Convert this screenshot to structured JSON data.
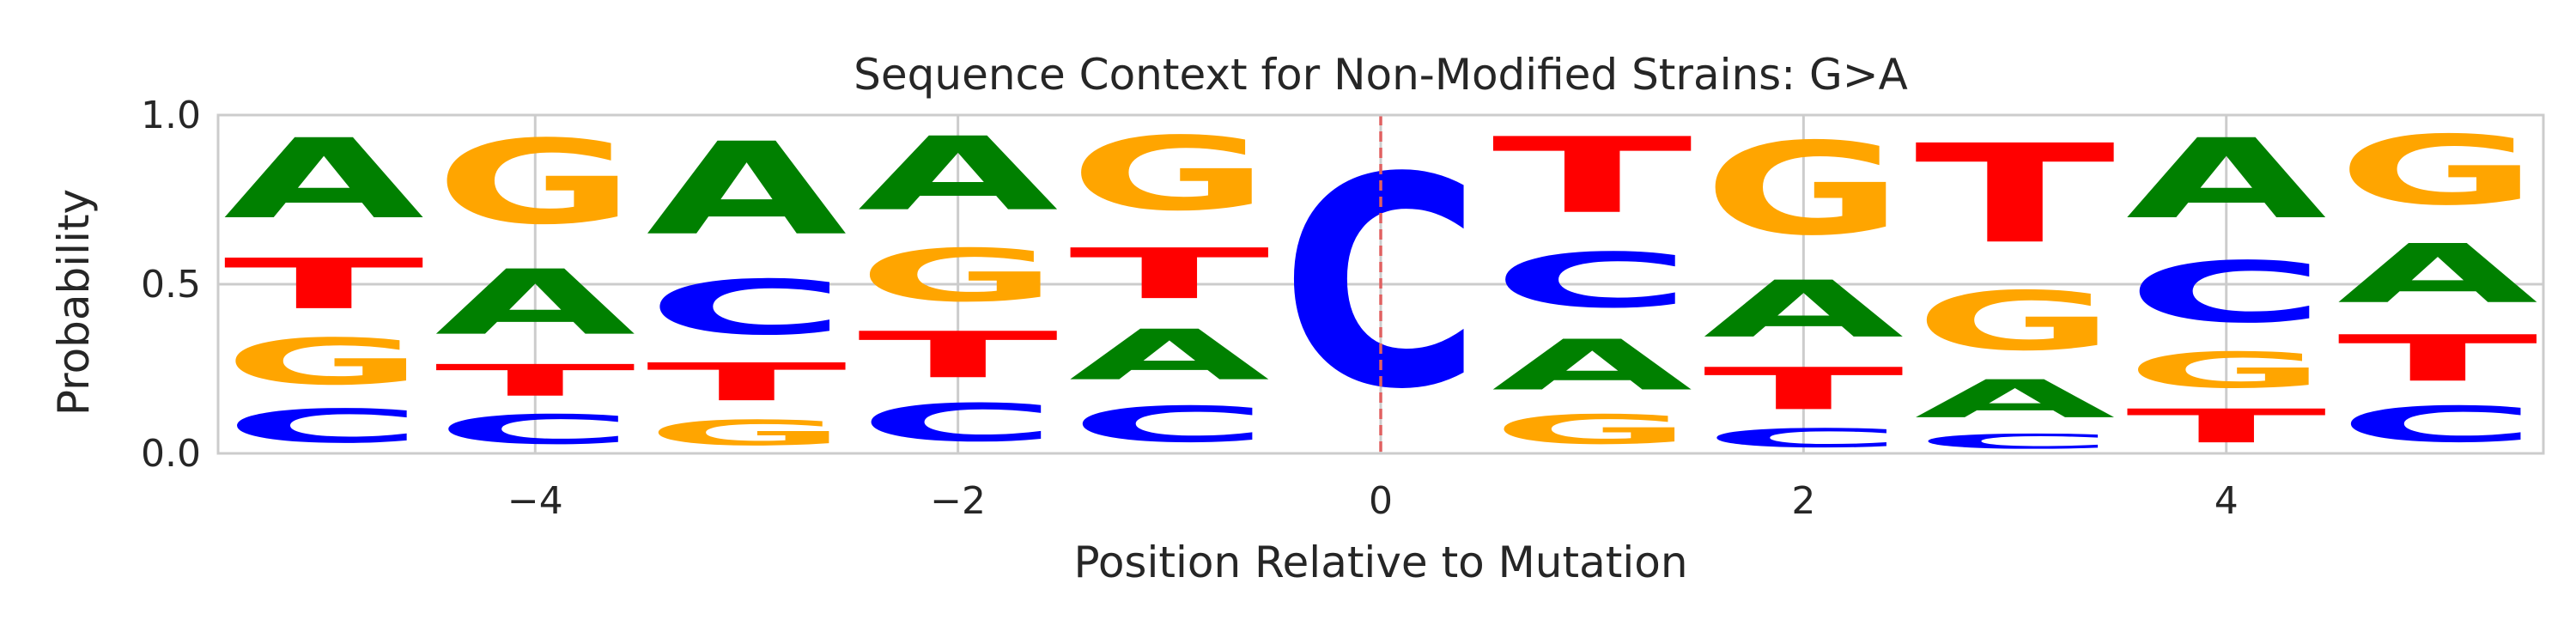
{
  "chart_data": {
    "type": "sequence-logo",
    "title": "Sequence Context for Non-Modified Strains: G>A",
    "xlabel": "Position Relative to Mutation",
    "ylabel": "Probability",
    "xlim": [
      -5.5,
      5.5
    ],
    "ylim": [
      0,
      1
    ],
    "grid": true,
    "x_ticks": [
      -4,
      -2,
      0,
      2,
      4
    ],
    "x_tick_labels": [
      "−4",
      "−2",
      "0",
      "2",
      "4"
    ],
    "y_ticks": [
      0,
      0.5,
      1
    ],
    "y_tick_labels": [
      "0.0",
      "0.5",
      "1.0"
    ],
    "mutation_position": 0,
    "colors": {
      "A": "#008000",
      "C": "#0000ff",
      "G": "#ffa500",
      "T": "#ff0000",
      "mutation_line": "#e06060",
      "grid": "#cccccc",
      "spine": "#cccccc"
    },
    "positions": [
      {
        "pos": -5,
        "A": 0.38,
        "C": 0.16,
        "G": 0.22,
        "T": 0.24
      },
      {
        "pos": -4,
        "A": 0.31,
        "C": 0.14,
        "G": 0.4,
        "T": 0.15
      },
      {
        "pos": -3,
        "A": 0.44,
        "C": 0.26,
        "G": 0.12,
        "T": 0.18
      },
      {
        "pos": -2,
        "A": 0.35,
        "C": 0.18,
        "G": 0.25,
        "T": 0.22
      },
      {
        "pos": -1,
        "A": 0.24,
        "C": 0.17,
        "G": 0.35,
        "T": 0.24
      },
      {
        "pos": 0,
        "A": 0.0,
        "C": 1.0,
        "G": 0.0,
        "T": 0.0
      },
      {
        "pos": 1,
        "A": 0.24,
        "C": 0.26,
        "G": 0.14,
        "T": 0.36
      },
      {
        "pos": 2,
        "A": 0.27,
        "C": 0.09,
        "G": 0.44,
        "T": 0.2
      },
      {
        "pos": 3,
        "A": 0.18,
        "C": 0.07,
        "G": 0.28,
        "T": 0.47
      },
      {
        "pos": 4,
        "A": 0.38,
        "C": 0.29,
        "G": 0.17,
        "T": 0.16
      },
      {
        "pos": 5,
        "A": 0.28,
        "C": 0.17,
        "G": 0.33,
        "T": 0.22
      }
    ]
  }
}
